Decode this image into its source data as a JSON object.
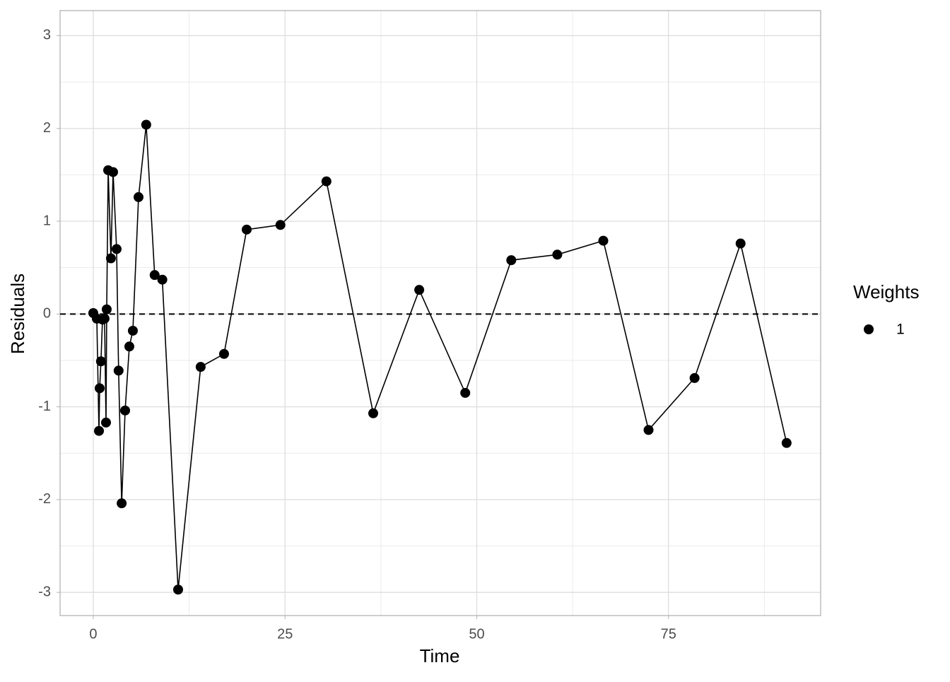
{
  "chart_data": {
    "type": "line",
    "x_label": "Time",
    "y_label": "Residuals",
    "legend_title": "Weights",
    "legend_position": "right",
    "x": [
      0,
      0.46,
      0.74,
      0.83,
      1.0,
      1.2,
      1.47,
      1.66,
      1.75,
      1.94,
      2.3,
      2.58,
      3.04,
      3.3,
      3.7,
      4.15,
      4.7,
      5.16,
      5.9,
      6.9,
      8.0,
      9.0,
      11.06,
      14.0,
      17.05,
      20.0,
      24.4,
      30.4,
      36.5,
      42.5,
      48.5,
      54.5,
      60.5,
      66.5,
      72.4,
      78.4,
      84.4,
      90.4
    ],
    "series": [
      {
        "name": "1",
        "color": "#000000",
        "values": [
          0.01,
          -0.05,
          -1.26,
          -0.8,
          -0.51,
          -0.06,
          -0.05,
          -1.17,
          0.05,
          1.55,
          0.6,
          1.53,
          0.7,
          -0.61,
          -2.04,
          -1.04,
          -0.35,
          -0.18,
          1.26,
          2.04,
          0.42,
          0.37,
          -2.97,
          -0.57,
          -0.43,
          0.91,
          0.96,
          1.43,
          -1.07,
          0.26,
          -0.85,
          0.58,
          0.64,
          0.79,
          -1.25,
          -0.69,
          0.76,
          -1.39
        ]
      }
    ],
    "hline": 0,
    "xlim": [
      -4.33,
      94.84
    ],
    "xticks": [
      0,
      25,
      50,
      75
    ],
    "ylim": [
      -3.25,
      3.27
    ],
    "yticks": [
      -3,
      -2,
      -1,
      0,
      1,
      2,
      3
    ],
    "grid": true,
    "minor_grid": true
  }
}
